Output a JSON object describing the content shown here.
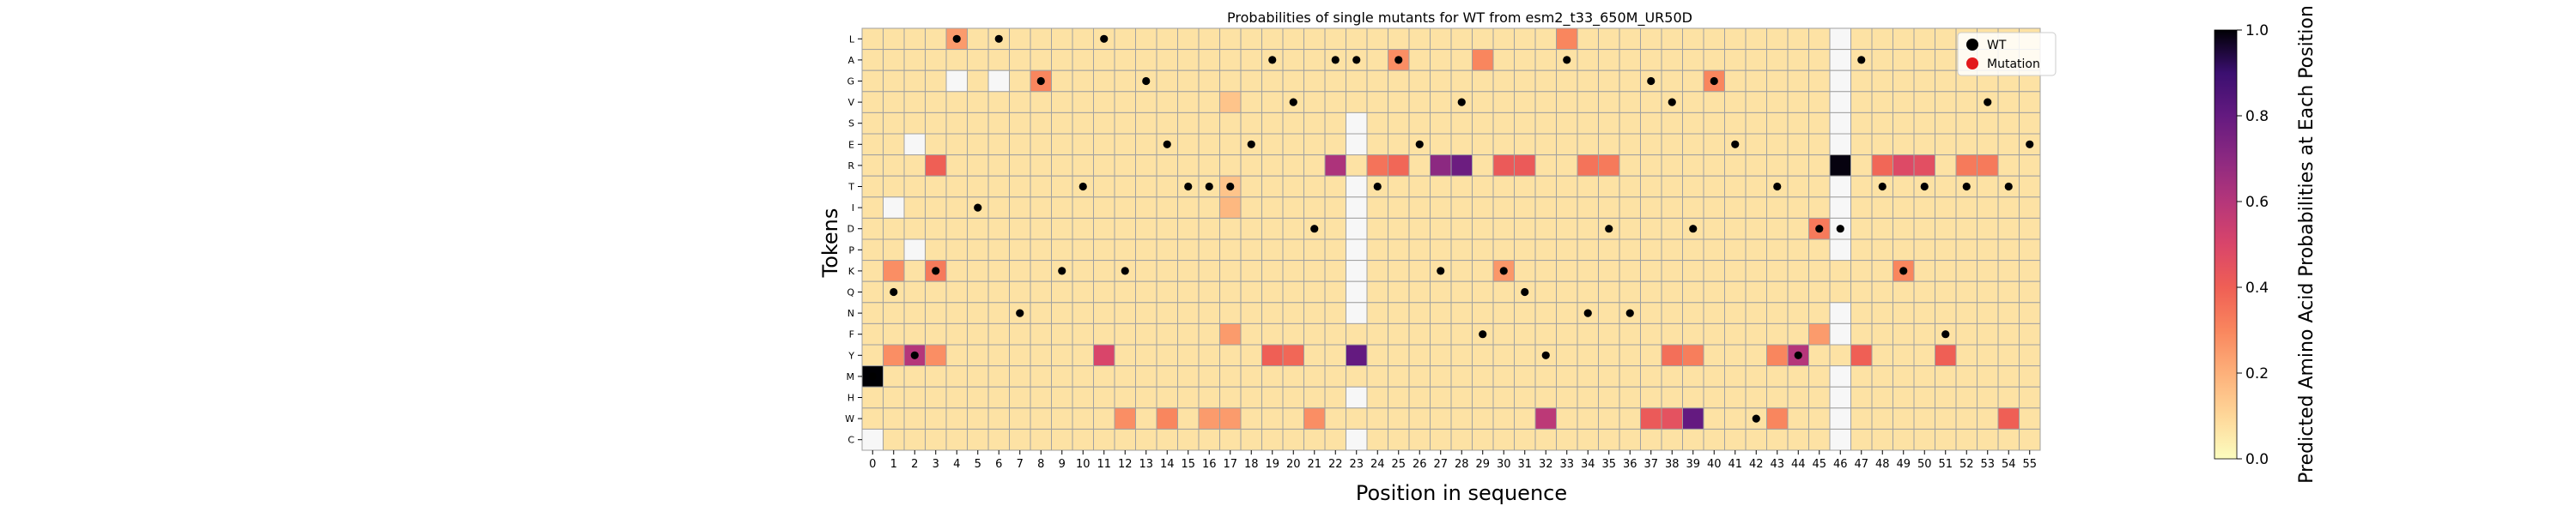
{
  "chart_data": {
    "type": "heatmap",
    "title": "Probabilities of single mutants for WT from esm2_t33_650M_UR50D",
    "xlabel": "Position in sequence",
    "ylabel": "Tokens",
    "colorbar_label": "Predicted Amino Acid Probabilities at Each Position",
    "colorbar_ticks": [
      "0.0",
      "0.2",
      "0.4",
      "0.6",
      "0.8",
      "1.0"
    ],
    "color_range": [
      0.0,
      1.0
    ],
    "colormap": "magma_r",
    "tokens": [
      "L",
      "A",
      "G",
      "V",
      "S",
      "E",
      "R",
      "T",
      "I",
      "D",
      "P",
      "K",
      "Q",
      "N",
      "F",
      "Y",
      "M",
      "H",
      "W",
      "C"
    ],
    "positions": [
      "0",
      "1",
      "2",
      "3",
      "4",
      "5",
      "6",
      "7",
      "8",
      "9",
      "10",
      "11",
      "12",
      "13",
      "14",
      "15",
      "16",
      "17",
      "18",
      "19",
      "20",
      "21",
      "22",
      "23",
      "24",
      "25",
      "26",
      "27",
      "28",
      "29",
      "30",
      "31",
      "32",
      "33",
      "34",
      "35",
      "36",
      "37",
      "38",
      "39",
      "40",
      "41",
      "42",
      "43",
      "44",
      "45",
      "46",
      "47",
      "48",
      "49",
      "50",
      "51",
      "52",
      "53",
      "54",
      "55"
    ],
    "legend": {
      "placement": "top-right",
      "entries": [
        {
          "label": "WT",
          "color": "#000000"
        },
        {
          "label": "Mutation",
          "color": "#e31a1c"
        }
      ]
    },
    "wt_sequence": [
      "M",
      "Q",
      "Y",
      "K",
      "L",
      "I",
      "L",
      "N",
      "G",
      "K",
      "T",
      "L",
      "K",
      "G",
      "E",
      "T",
      "T",
      "T",
      "E",
      "A",
      "V",
      "D",
      "A",
      "A",
      "T",
      "A",
      "E",
      "K",
      "V",
      "F",
      "K",
      "Q",
      "Y",
      "A",
      "N",
      "D",
      "N",
      "G",
      "V",
      "D",
      "G",
      "E",
      "W",
      "T",
      "Y",
      "D",
      "D",
      "A",
      "T",
      "K",
      "T",
      "F",
      "T",
      "V",
      "T",
      "E"
    ],
    "background_probability": 0.07,
    "mutations": [],
    "highlights": [
      {
        "token": "M",
        "position": 0,
        "p": 1.0
      },
      {
        "token": "R",
        "position": 46,
        "p": 0.99
      },
      {
        "token": "Y",
        "position": 23,
        "p": 0.8
      },
      {
        "token": "W",
        "position": 39,
        "p": 0.8
      },
      {
        "token": "R",
        "position": 28,
        "p": 0.78
      },
      {
        "token": "R",
        "position": 27,
        "p": 0.7
      },
      {
        "token": "R",
        "position": 22,
        "p": 0.62
      },
      {
        "token": "Y",
        "position": 2,
        "p": 0.6
      },
      {
        "token": "Y",
        "position": 44,
        "p": 0.6
      },
      {
        "token": "W",
        "position": 32,
        "p": 0.58
      },
      {
        "token": "Y",
        "position": 11,
        "p": 0.5
      },
      {
        "token": "R",
        "position": 49,
        "p": 0.48
      },
      {
        "token": "R",
        "position": 50,
        "p": 0.46
      },
      {
        "token": "W",
        "position": 38,
        "p": 0.45
      },
      {
        "token": "W",
        "position": 37,
        "p": 0.42
      },
      {
        "token": "R",
        "position": 30,
        "p": 0.42
      },
      {
        "token": "R",
        "position": 31,
        "p": 0.42
      },
      {
        "token": "R",
        "position": 3,
        "p": 0.4
      },
      {
        "token": "Y",
        "position": 19,
        "p": 0.4
      },
      {
        "token": "Y",
        "position": 20,
        "p": 0.38
      },
      {
        "token": "Y",
        "position": 47,
        "p": 0.4
      },
      {
        "token": "Y",
        "position": 51,
        "p": 0.4
      },
      {
        "token": "W",
        "position": 54,
        "p": 0.4
      },
      {
        "token": "R",
        "position": 25,
        "p": 0.38
      },
      {
        "token": "R",
        "position": 48,
        "p": 0.38
      },
      {
        "token": "Y",
        "position": 38,
        "p": 0.36
      },
      {
        "token": "R",
        "position": 24,
        "p": 0.35
      },
      {
        "token": "R",
        "position": 34,
        "p": 0.35
      },
      {
        "token": "R",
        "position": 35,
        "p": 0.33
      },
      {
        "token": "R",
        "position": 52,
        "p": 0.33
      },
      {
        "token": "R",
        "position": 53,
        "p": 0.33
      },
      {
        "token": "D",
        "position": 45,
        "p": 0.33
      },
      {
        "token": "K",
        "position": 3,
        "p": 0.33
      },
      {
        "token": "K",
        "position": 49,
        "p": 0.3
      },
      {
        "token": "W",
        "position": 43,
        "p": 0.3
      },
      {
        "token": "L",
        "position": 33,
        "p": 0.3
      },
      {
        "token": "A",
        "position": 29,
        "p": 0.3
      },
      {
        "token": "G",
        "position": 8,
        "p": 0.3
      },
      {
        "token": "G",
        "position": 40,
        "p": 0.3
      },
      {
        "token": "A",
        "position": 25,
        "p": 0.28
      },
      {
        "token": "L",
        "position": 4,
        "p": 0.25
      },
      {
        "token": "K",
        "position": 1,
        "p": 0.28
      },
      {
        "token": "K",
        "position": 30,
        "p": 0.26
      },
      {
        "token": "Y",
        "position": 39,
        "p": 0.32
      },
      {
        "token": "Y",
        "position": 43,
        "p": 0.3
      },
      {
        "token": "Y",
        "position": 1,
        "p": 0.28
      },
      {
        "token": "Y",
        "position": 3,
        "p": 0.28
      },
      {
        "token": "W",
        "position": 12,
        "p": 0.28
      },
      {
        "token": "W",
        "position": 14,
        "p": 0.3
      },
      {
        "token": "W",
        "position": 21,
        "p": 0.28
      },
      {
        "token": "W",
        "position": 16,
        "p": 0.25
      },
      {
        "token": "W",
        "position": 17,
        "p": 0.25
      },
      {
        "token": "F",
        "position": 17,
        "p": 0.25
      },
      {
        "token": "F",
        "position": 45,
        "p": 0.25
      },
      {
        "token": "I",
        "position": 17,
        "p": 0.18
      },
      {
        "token": "T",
        "position": 17,
        "p": 0.15
      },
      {
        "token": "V",
        "position": 17,
        "p": 0.15
      }
    ],
    "white_cells": [
      {
        "token": "L",
        "position": 46
      },
      {
        "token": "A",
        "position": 46
      },
      {
        "token": "G",
        "position": 4
      },
      {
        "token": "G",
        "position": 6
      },
      {
        "token": "G",
        "position": 46
      },
      {
        "token": "V",
        "position": 46
      },
      {
        "token": "S",
        "position": 23
      },
      {
        "token": "S",
        "position": 46
      },
      {
        "token": "E",
        "position": 2
      },
      {
        "token": "E",
        "position": 23
      },
      {
        "token": "E",
        "position": 46
      },
      {
        "token": "T",
        "position": 23
      },
      {
        "token": "T",
        "position": 46
      },
      {
        "token": "I",
        "position": 1
      },
      {
        "token": "I",
        "position": 23
      },
      {
        "token": "I",
        "position": 46
      },
      {
        "token": "D",
        "position": 23
      },
      {
        "token": "D",
        "position": 46
      },
      {
        "token": "P",
        "position": 2
      },
      {
        "token": "P",
        "position": 23
      },
      {
        "token": "P",
        "position": 46
      },
      {
        "token": "K",
        "position": 23
      },
      {
        "token": "Q",
        "position": 23
      },
      {
        "token": "N",
        "position": 23
      },
      {
        "token": "N",
        "position": 46
      },
      {
        "token": "F",
        "position": 46
      },
      {
        "token": "M",
        "position": 46
      },
      {
        "token": "H",
        "position": 23
      },
      {
        "token": "H",
        "position": 46
      },
      {
        "token": "W",
        "position": 46
      },
      {
        "token": "C",
        "position": 0
      },
      {
        "token": "C",
        "position": 23
      },
      {
        "token": "C",
        "position": 46
      }
    ]
  }
}
